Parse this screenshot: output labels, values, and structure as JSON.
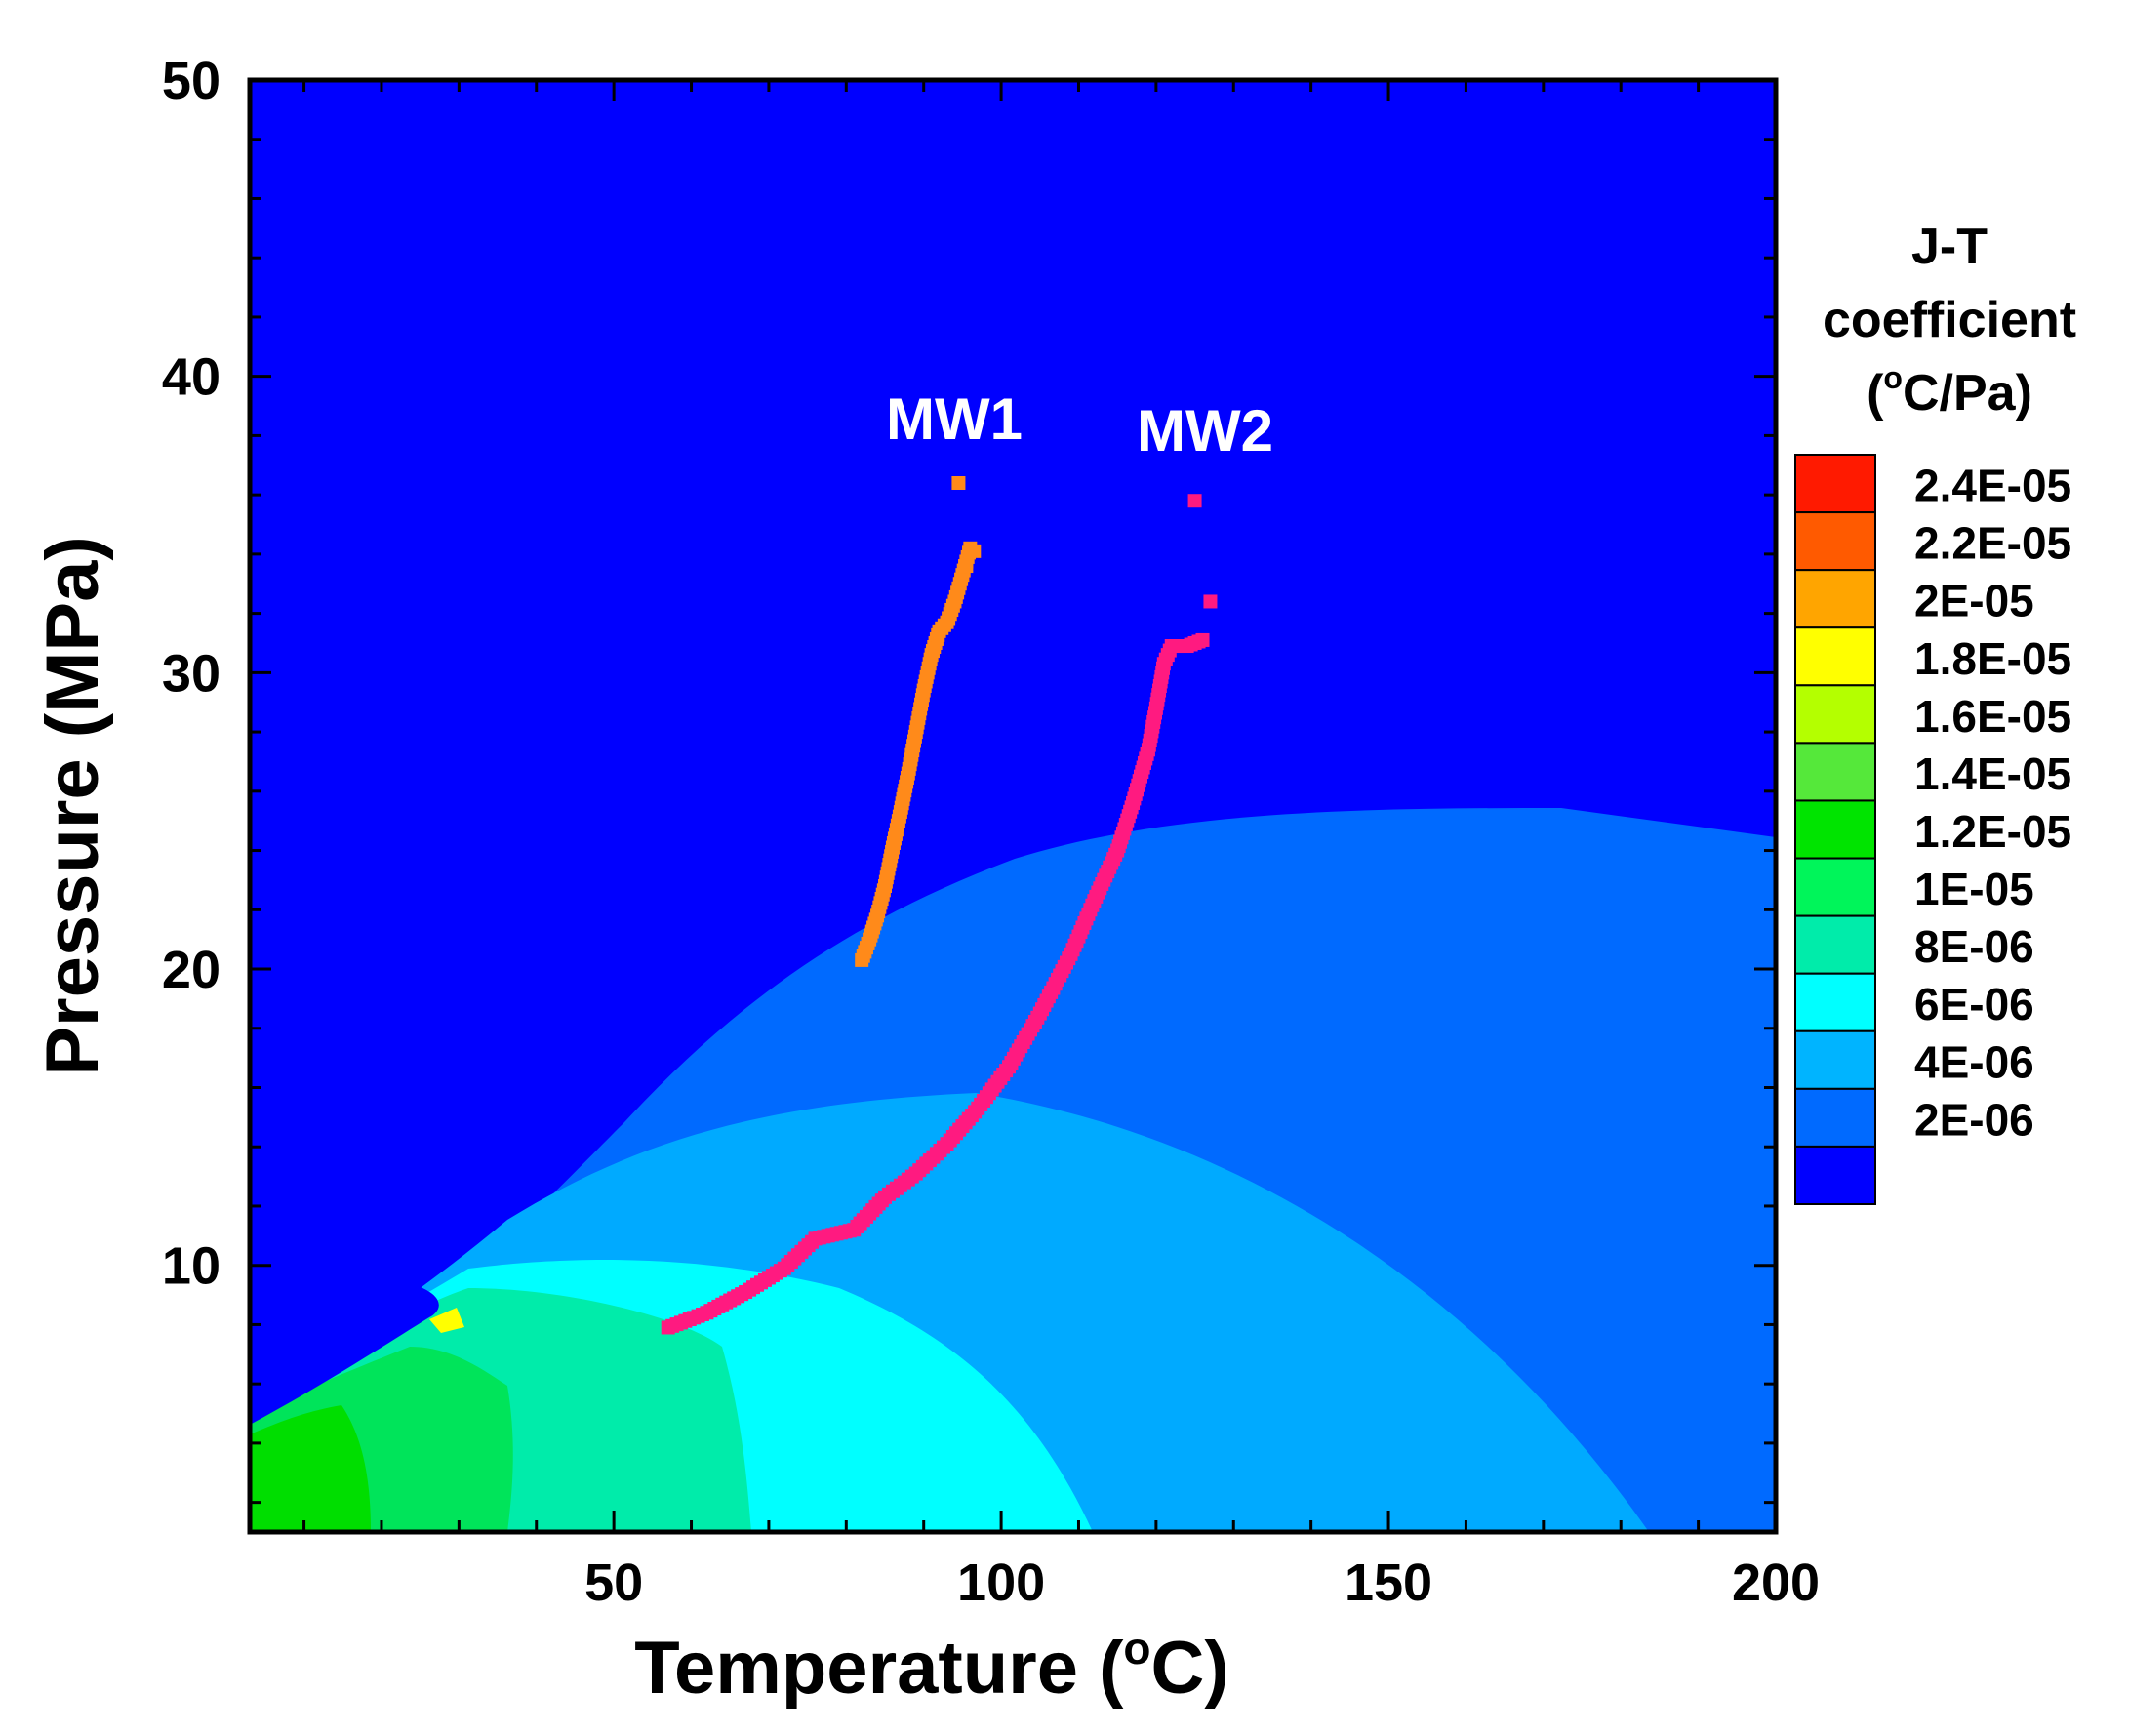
{
  "chart_data": {
    "type": "heatmap",
    "title": "",
    "xlabel": "Temperature (",
    "xlabel_sup": "o",
    "xlabel_end": "C)",
    "ylabel": "Pressure (MPa)",
    "xlim": [
      3,
      200
    ],
    "ylim": [
      1,
      50
    ],
    "x_ticks": [
      50,
      100,
      150,
      200
    ],
    "y_ticks": [
      10,
      20,
      30,
      40,
      50
    ],
    "grid": false,
    "colorbar": {
      "title_lines": [
        "J-T",
        "coefficient",
        "(",
        "o",
        "C/Pa)"
      ],
      "levels": [
        "2.4E-05",
        "2.2E-05",
        "2E-05",
        "1.8E-05",
        "1.6E-05",
        "1.4E-05",
        "1.2E-05",
        "1E-05",
        "8E-06",
        "6E-06",
        "4E-06",
        "2E-06"
      ],
      "colors": [
        "#ff1a00",
        "#ff5a00",
        "#ffa500",
        "#ffff00",
        "#b4ff00",
        "#55e83a",
        "#00e400",
        "#00f55a",
        "#00ecaa",
        "#00ffff",
        "#00b4ff",
        "#006aff",
        "#0000ff"
      ]
    },
    "regions": [
      {
        "name": "2E-06",
        "color": "#0000ff"
      },
      {
        "name": "4E-06",
        "color": "#006aff"
      },
      {
        "name": "6E-06",
        "color": "#00aaff"
      },
      {
        "name": "8E-06",
        "color": "#00ffff"
      },
      {
        "name": "1E-05",
        "color": "#00ecaa"
      },
      {
        "name": "1.2E-05",
        "color": "#00e45a"
      },
      {
        "name": "1.4E-05",
        "color": "#00de00"
      },
      {
        "name": "2E-05",
        "color": "#ffff00"
      }
    ],
    "series": [
      {
        "name": "MW1",
        "color": "#ff8a1a",
        "x": [
          82,
          83,
          84,
          85,
          86,
          87,
          88,
          89,
          90,
          91,
          92,
          93,
          94,
          96
        ],
        "y": [
          20.3,
          21,
          21.8,
          22.8,
          24.1,
          25.3,
          26.6,
          28,
          29.4,
          30.6,
          31.4,
          31.7,
          32.4,
          34.2
        ],
        "outliers": {
          "x": [
            94.5,
            95.5,
            96.5
          ],
          "y": [
            36.4,
            33.6,
            34.1
          ]
        }
      },
      {
        "name": "MW2",
        "color": "#ff1a80",
        "x": [
          57,
          62,
          67,
          72,
          76,
          81,
          85,
          89,
          93,
          97,
          101,
          105,
          109,
          112,
          115,
          117,
          119,
          120,
          121,
          122,
          124,
          126
        ],
        "y": [
          7.9,
          8.4,
          9.1,
          9.9,
          10.9,
          11.2,
          12.3,
          13.1,
          14.1,
          15.3,
          16.7,
          18.5,
          20.5,
          22.3,
          24,
          25.6,
          27.4,
          28.8,
          30.3,
          30.9,
          30.9,
          31.1
        ],
        "outliers": {
          "x": [
            125,
            127
          ],
          "y": [
            35.8,
            32.4
          ]
        }
      }
    ]
  }
}
